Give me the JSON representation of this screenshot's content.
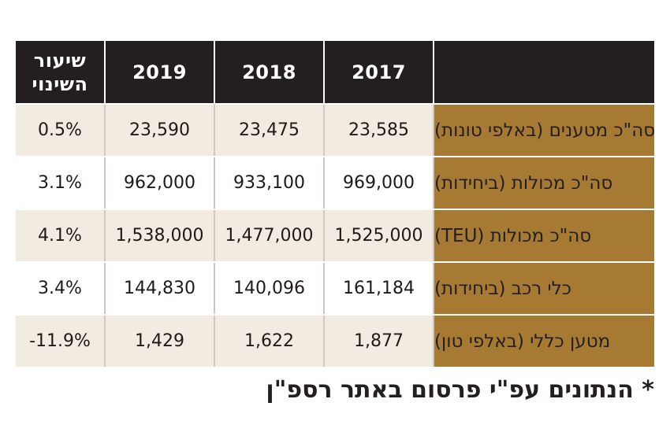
{
  "chart_data": {
    "type": "table",
    "columns": [
      "2017",
      "2018",
      "2019",
      "שיעור השינוי"
    ],
    "change_header_lines": [
      "שיעור",
      "השינוי"
    ],
    "rows": [
      {
        "label": "סה\"כ מטענים (באלפי טונות)",
        "values": [
          "23,585",
          "23,475",
          "23,590",
          "0.5%"
        ]
      },
      {
        "label": "סה\"כ מכולות (ביחידות)",
        "values": [
          "969,000",
          "933,100",
          "962,000",
          "3.1%"
        ]
      },
      {
        "label": "סה\"כ מכולות (TEU)",
        "values": [
          "1,525,000",
          "1,477,000",
          "1,538,000",
          "4.1%"
        ]
      },
      {
        "label": "כלי רכב (ביחידות)",
        "values": [
          "161,184",
          "140,096",
          "144,830",
          "3.4%"
        ]
      },
      {
        "label": "מטען כללי (באלפי טון)",
        "values": [
          "1,877",
          "1,622",
          "1,429",
          "-11.9%"
        ]
      }
    ],
    "footnote": "* הנתונים עפ\"י פרסום באתר רספ\"ן"
  },
  "colors": {
    "header_bg": "#231f20",
    "label_bg": "#a67a32",
    "light_row_bg": "#f2ebe1"
  }
}
